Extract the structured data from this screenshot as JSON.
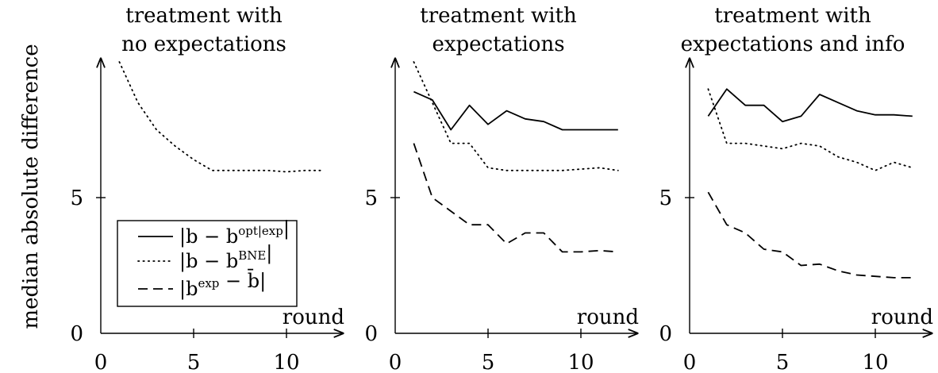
{
  "ylabel": "median absolute difference",
  "xlabel": "round",
  "chart_data": [
    {
      "type": "line",
      "title": [
        "treatment with",
        "no expectations"
      ],
      "x_ticks": [
        "0",
        "5",
        "10"
      ],
      "y_ticks": [
        "0",
        "5"
      ],
      "xlim": [
        0,
        13
      ],
      "ylim": [
        0,
        10
      ],
      "series": [
        {
          "key": "bne",
          "style": "dotted",
          "x": [
            1,
            2,
            3,
            4,
            5,
            6,
            7,
            8,
            9,
            10,
            11,
            12
          ],
          "y": [
            10.0,
            8.5,
            7.5,
            6.9,
            6.4,
            6.0,
            6.0,
            6.0,
            6.0,
            5.95,
            6.0,
            6.0
          ]
        }
      ]
    },
    {
      "type": "line",
      "title": [
        "treatment with",
        "expectations"
      ],
      "x_ticks": [
        "0",
        "5",
        "10"
      ],
      "y_ticks": [
        "0",
        "5"
      ],
      "xlim": [
        0,
        13
      ],
      "ylim": [
        0,
        10
      ],
      "series": [
        {
          "key": "opt",
          "style": "solid",
          "x": [
            1,
            2,
            3,
            4,
            5,
            6,
            7,
            8,
            9,
            10,
            11,
            12
          ],
          "y": [
            8.9,
            8.6,
            7.5,
            8.4,
            7.7,
            8.2,
            7.9,
            7.8,
            7.5,
            7.5,
            7.5,
            7.5
          ]
        },
        {
          "key": "bne",
          "style": "dotted",
          "x": [
            1,
            2,
            3,
            4,
            5,
            6,
            7,
            8,
            9,
            10,
            11,
            12
          ],
          "y": [
            10.0,
            8.5,
            7.0,
            7.0,
            6.1,
            6.0,
            6.0,
            6.0,
            6.0,
            6.05,
            6.1,
            6.0
          ]
        },
        {
          "key": "exp",
          "style": "dashed",
          "x": [
            1,
            2,
            3,
            4,
            5,
            6,
            7,
            8,
            9,
            10,
            11,
            12
          ],
          "y": [
            7.0,
            5.0,
            4.5,
            4.0,
            4.0,
            3.3,
            3.7,
            3.7,
            3.0,
            3.0,
            3.05,
            3.0
          ]
        }
      ]
    },
    {
      "type": "line",
      "title": [
        "treatment with",
        "expectations and info"
      ],
      "x_ticks": [
        "0",
        "5",
        "10"
      ],
      "y_ticks": [
        "0",
        "5"
      ],
      "xlim": [
        0,
        13
      ],
      "ylim": [
        0,
        10
      ],
      "series": [
        {
          "key": "opt",
          "style": "solid",
          "x": [
            1,
            2,
            3,
            4,
            5,
            6,
            7,
            8,
            9,
            10,
            11,
            12
          ],
          "y": [
            8.0,
            9.0,
            8.4,
            8.4,
            7.8,
            8.0,
            8.8,
            8.5,
            8.2,
            8.05,
            8.05,
            8.0
          ]
        },
        {
          "key": "bne",
          "style": "dotted",
          "x": [
            1,
            2,
            3,
            4,
            5,
            6,
            7,
            8,
            9,
            10,
            11,
            12
          ],
          "y": [
            9.0,
            7.0,
            7.0,
            6.9,
            6.8,
            7.0,
            6.9,
            6.5,
            6.3,
            6.0,
            6.3,
            6.1
          ]
        },
        {
          "key": "exp",
          "style": "dashed",
          "x": [
            1,
            2,
            3,
            4,
            5,
            6,
            7,
            8,
            9,
            10,
            11,
            12
          ],
          "y": [
            5.2,
            4.0,
            3.7,
            3.1,
            3.0,
            2.5,
            2.55,
            2.3,
            2.15,
            2.1,
            2.05,
            2.05
          ]
        }
      ]
    }
  ],
  "legend": {
    "placement": "bottom-right of first panel",
    "entries": [
      {
        "key": "opt",
        "style": "solid",
        "label": "|b − b^{opt|exp}|"
      },
      {
        "key": "bne",
        "style": "dotted",
        "label": "|b − b^{BNE}|"
      },
      {
        "key": "exp",
        "style": "dashed",
        "label": "|b^{exp} − b̄|"
      }
    ]
  }
}
